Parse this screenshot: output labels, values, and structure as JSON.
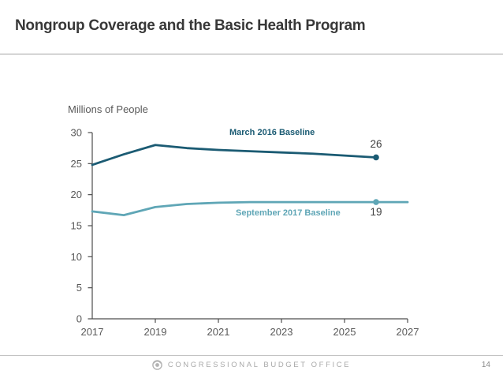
{
  "header": {
    "title": "Nongroup Coverage and the Basic Health Program"
  },
  "chart_data": {
    "type": "line",
    "title": "",
    "ylabel": "Millions of People",
    "xlabel": "",
    "ylim": [
      0,
      30
    ],
    "xlim": [
      2017,
      2027
    ],
    "y_ticks": [
      0,
      5,
      10,
      15,
      20,
      25,
      30
    ],
    "x_ticks": [
      2017,
      2019,
      2021,
      2023,
      2025,
      2027
    ],
    "grid": false,
    "legend_position": "inline-labels",
    "series": [
      {
        "name": "March 2016 Baseline",
        "color": "#1b5b73",
        "years": [
          2017,
          2018,
          2019,
          2020,
          2021,
          2022,
          2023,
          2024,
          2025,
          2026
        ],
        "values": [
          24.8,
          26.5,
          28.0,
          27.5,
          27.2,
          27.0,
          26.8,
          26.6,
          26.3,
          26.0
        ],
        "marker_year": 2026,
        "marker_label": "26"
      },
      {
        "name": "September 2017 Baseline",
        "color": "#5fa6b6",
        "years": [
          2017,
          2018,
          2019,
          2020,
          2021,
          2022,
          2023,
          2024,
          2025,
          2026,
          2027
        ],
        "values": [
          17.3,
          16.7,
          18.0,
          18.5,
          18.7,
          18.8,
          18.8,
          18.8,
          18.8,
          18.8,
          18.8
        ],
        "marker_year": 2026,
        "marker_label": "19"
      }
    ]
  },
  "footer": {
    "organization": "CONGRESSIONAL BUDGET OFFICE",
    "page_number": "14"
  }
}
